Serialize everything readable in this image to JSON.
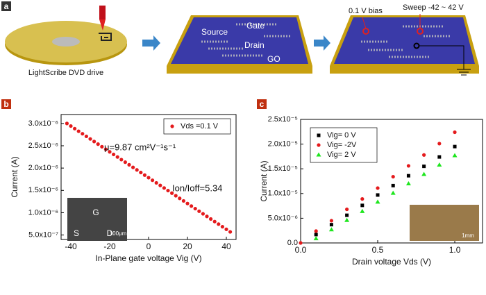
{
  "panel_labels": [
    "a",
    "b",
    "c"
  ],
  "panel_a": {
    "drive_label": "LightScribe DVD drive",
    "gate": "Gate",
    "source": "Source",
    "drain": "Drain",
    "go": "GO",
    "bias": "0.1 V bias",
    "sweep": "Sweep -42 ~ 42 V"
  },
  "chart_data": [
    {
      "type": "scatter",
      "x_label": "In-Plane gate voltage  Vig (V)",
      "y_label": "Current (A)",
      "x": [
        -42,
        -40,
        -38,
        -36,
        -34,
        -32,
        -30,
        -28,
        -26,
        -24,
        -22,
        -20,
        -18,
        -16,
        -14,
        -12,
        -10,
        -8,
        -6,
        -4,
        -2,
        0,
        2,
        4,
        6,
        8,
        10,
        12,
        14,
        16,
        18,
        20,
        22,
        24,
        26,
        28,
        30,
        32,
        34,
        36,
        38,
        40,
        42
      ],
      "series": [
        {
          "name": "Vds =0.1 V",
          "color": "#e41a1c",
          "marker": "circle",
          "values": [
            3e-06,
            2.942e-06,
            2.884e-06,
            2.826e-06,
            2.769e-06,
            2.711e-06,
            2.653e-06,
            2.595e-06,
            2.537e-06,
            2.479e-06,
            2.421e-06,
            2.364e-06,
            2.306e-06,
            2.248e-06,
            2.19e-06,
            2.132e-06,
            2.074e-06,
            2.016e-06,
            1.959e-06,
            1.901e-06,
            1.843e-06,
            1.785e-06,
            1.727e-06,
            1.669e-06,
            1.611e-06,
            1.554e-06,
            1.496e-06,
            1.438e-06,
            1.38e-06,
            1.322e-06,
            1.264e-06,
            1.206e-06,
            1.149e-06,
            1.091e-06,
            1.033e-06,
            9.75e-07,
            9.17e-07,
            8.59e-07,
            8.01e-07,
            7.44e-07,
            6.86e-07,
            6.28e-07,
            5.7e-07
          ]
        }
      ],
      "xlim": [
        -45,
        45
      ],
      "xticks": [
        -40,
        -20,
        0,
        20,
        40
      ],
      "ylim": [
        4e-07,
        3.2e-06
      ],
      "yticks": [
        {
          "value": 5e-07,
          "label": "5.0x10⁻⁷"
        },
        {
          "value": 1e-06,
          "label": "1.0x10⁻⁶"
        },
        {
          "value": 1.5e-06,
          "label": "1.5x10⁻⁶"
        },
        {
          "value": 2e-06,
          "label": "2.0x10⁻⁶"
        },
        {
          "value": 2.5e-06,
          "label": "2.5x10⁻⁶"
        },
        {
          "value": 3e-06,
          "label": "3.0x10⁻⁶"
        }
      ],
      "legend": "upper right",
      "annotations": [
        "μ=9.87 cm²V⁻¹s⁻¹",
        "Ion/Ioff=5.34"
      ],
      "inset_labels": [
        "G",
        "S",
        "D",
        "100μm"
      ]
    },
    {
      "type": "scatter",
      "x_label": "Drain voltage  Vds (V)",
      "y_label": "Current (A)",
      "x": [
        0,
        0.1,
        0.2,
        0.3,
        0.4,
        0.5,
        0.6,
        0.7,
        0.8,
        0.9,
        1.0
      ],
      "series": [
        {
          "name": "Vig= 0 V",
          "color": "#000000",
          "marker": "square",
          "values": [
            null,
            1.7e-06,
            3.7e-06,
            5.6e-06,
            7.6e-06,
            9.7e-06,
            1.16e-05,
            1.36e-05,
            1.55e-05,
            1.74e-05,
            1.95e-05
          ]
        },
        {
          "name": "Vig= -2V",
          "color": "#e41a1c",
          "marker": "circle",
          "values": [
            0,
            2.4e-06,
            4.5e-06,
            6.8e-06,
            8.9e-06,
            1.11e-05,
            1.34e-05,
            1.56e-05,
            1.78e-05,
            2.01e-05,
            2.24e-05
          ]
        },
        {
          "name": "Vig= 2 V",
          "color": "#1ee61e",
          "marker": "triangle",
          "values": [
            null,
            9e-07,
            2.7e-06,
            4.6e-06,
            6.4e-06,
            8.3e-06,
            1.01e-05,
            1.2e-05,
            1.39e-05,
            1.58e-05,
            1.77e-05
          ]
        }
      ],
      "xlim": [
        0,
        1.18
      ],
      "xticks": [
        {
          "value": 0,
          "label": "0.0"
        },
        {
          "value": 0.5,
          "label": "0.5"
        },
        {
          "value": 1.0,
          "label": "1.0"
        }
      ],
      "ylim": [
        0,
        2.5e-05
      ],
      "yticks": [
        {
          "value": 0,
          "label": "0.0"
        },
        {
          "value": 5e-06,
          "label": "5.0x10⁻⁶"
        },
        {
          "value": 1e-05,
          "label": "1.0x10⁻⁵"
        },
        {
          "value": 1.5e-05,
          "label": "1.5x10⁻⁵"
        },
        {
          "value": 2e-05,
          "label": "2.0x10⁻⁵"
        },
        {
          "value": 2.5e-05,
          "label": "2.5x10⁻⁵"
        }
      ],
      "legend": "upper left",
      "annotations": [],
      "inset_labels": [
        "1mm"
      ]
    }
  ]
}
